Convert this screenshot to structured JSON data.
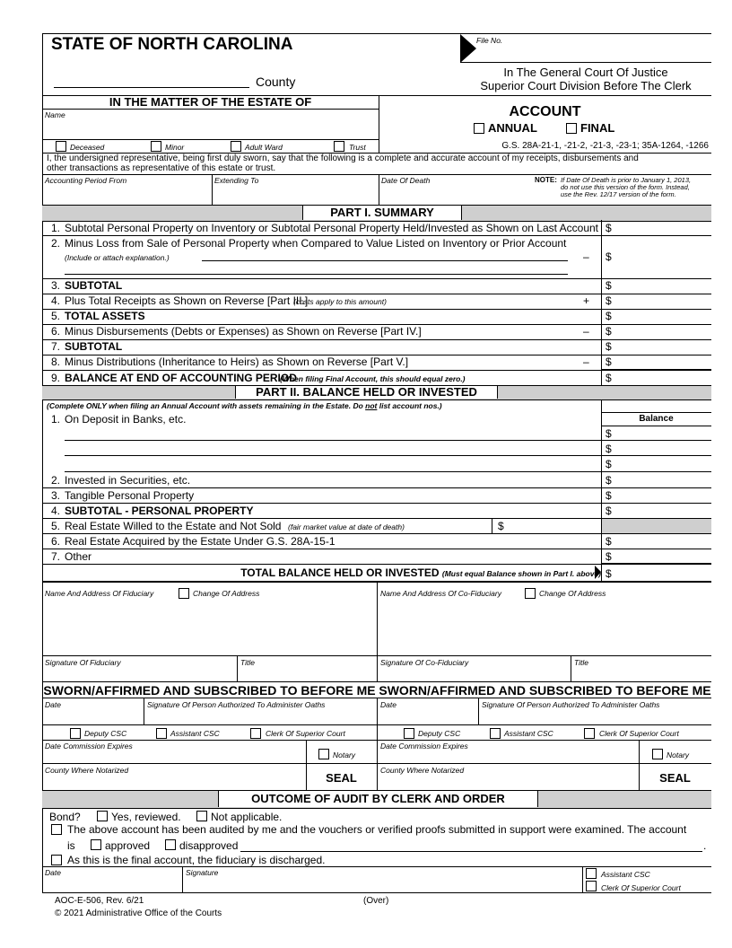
{
  "header": {
    "state": "STATE OF NORTH CAROLINA",
    "file_no_label": "File No.",
    "county_label": "County",
    "court_line1": "In The General Court Of Justice",
    "court_line2": "Superior Court Division Before The Clerk",
    "estate_heading": "IN THE MATTER OF THE ESTATE OF",
    "name_label": "Name",
    "estate_types": [
      "Deceased",
      "Minor",
      "Adult Ward",
      "Trust"
    ],
    "form_title": "ACCOUNT",
    "account_types": [
      "ANNUAL",
      "FINAL"
    ],
    "statutes": "G.S. 28A-21-1, -21-2, -21-3, -23-1; 35A-1264, -1266",
    "oath_line1": "I, the undersigned representative, being first duly sworn, say that the following is a complete and accurate account of my receipts, disbursements and",
    "oath_line2": "other transactions as representative of this estate or trust.",
    "period_from_label": "Accounting Period From",
    "extending_to_label": "Extending To",
    "date_of_death_label": "Date Of Death",
    "note_label": "NOTE:",
    "note_line1": "If Date Of Death is prior to January 1, 2013,",
    "note_line2": "do not use this version of the form. Instead,",
    "note_line3": "use the Rev. 12/17 version of the form."
  },
  "part1": {
    "title": "PART I. SUMMARY",
    "currency": "$",
    "rows": [
      {
        "num": "1.",
        "text": "Subtotal Personal Property on Inventory or Subtotal Personal Property Held/Invested as Shown on Last Account",
        "sign": ""
      },
      {
        "num": "2.",
        "text": "Minus Loss from Sale of Personal Property when Compared to Value Listed on Inventory or Prior Account",
        "note": "(Include or attach explanation.)",
        "sign": "–"
      },
      {
        "num": "3.",
        "text": "SUBTOTAL",
        "sign": ""
      },
      {
        "num": "4.",
        "text": "Plus Total Receipts as Shown on Reverse [Part III.]",
        "note": "(costs apply to this amount)",
        "sign": "+"
      },
      {
        "num": "5.",
        "text": "TOTAL ASSETS",
        "sign": ""
      },
      {
        "num": "6.",
        "text": "Minus Disbursements (Debts or Expenses) as Shown on Reverse [Part IV.]",
        "sign": "–"
      },
      {
        "num": "7.",
        "text": "SUBTOTAL",
        "sign": ""
      },
      {
        "num": "8.",
        "text": "Minus Distributions (Inheritance to Heirs) as Shown on Reverse [Part V.]",
        "sign": "–"
      },
      {
        "num": "9.",
        "text": "BALANCE AT END OF ACCOUNTING PERIOD",
        "note": "(When filing Final Account, this should equal zero.)",
        "sign": ""
      }
    ]
  },
  "part2": {
    "title": "PART II. BALANCE HELD OR INVESTED",
    "instructions_a": "(Complete ONLY when filing an Annual Account with assets remaining in the Estate. Do ",
    "instructions_not": "not",
    "instructions_b": " list account nos.)",
    "balance_header": "Balance",
    "currency": "$",
    "rows": [
      {
        "num": "1.",
        "text": "On Deposit in Banks, etc."
      },
      {
        "num": "2.",
        "text": "Invested in Securities, etc."
      },
      {
        "num": "3.",
        "text": "Tangible Personal Property"
      },
      {
        "num": "4.",
        "text": "SUBTOTAL - PERSONAL PROPERTY"
      },
      {
        "num": "5.",
        "text": "Real Estate Willed to the Estate and Not Sold",
        "note": "(fair market value at date of death)"
      },
      {
        "num": "6.",
        "text": "Real Estate Acquired by the Estate Under G.S. 28A-15-1"
      },
      {
        "num": "7.",
        "text": "Other"
      }
    ],
    "total_label": "TOTAL BALANCE HELD OR INVESTED",
    "total_note": "(Must equal Balance shown in Part I. above)"
  },
  "fiduciary": {
    "name_address_label": "Name And Address Of Fiduciary",
    "co_name_address_label": "Name And Address Of Co-Fiduciary",
    "change_address_label": "Change Of Address",
    "signature_label": "Signature Of Fiduciary",
    "co_signature_label": "Signature Of Co-Fiduciary",
    "title_label": "Title"
  },
  "sworn": {
    "heading": "SWORN/AFFIRMED AND SUBSCRIBED TO BEFORE ME",
    "date_label": "Date",
    "signature_label": "Signature Of Person Authorized To Administer Oaths",
    "options": [
      "Deputy CSC",
      "Assistant CSC",
      "Clerk Of Superior Court"
    ],
    "commission_label": "Date Commission Expires",
    "notary_label": "Notary",
    "county_label": "County Where Notarized",
    "seal": "SEAL"
  },
  "audit": {
    "title": "OUTCOME OF AUDIT BY CLERK AND ORDER",
    "bond_label": "Bond?",
    "bond_yes": "Yes, reviewed.",
    "bond_na": "Not applicable.",
    "audited_text": "The above account has been audited by me and the vouchers or verified proofs submitted in support were examined. The account",
    "is_label": "is",
    "approved": "approved",
    "disapproved": "disapproved",
    "period": ".",
    "final_text": "As this is the final account, the fiduciary is discharged.",
    "date_label": "Date",
    "signature_label": "Signature",
    "signer_options": [
      "Assistant CSC",
      "Clerk Of Superior Court"
    ]
  },
  "footer": {
    "form_number": "AOC-E-506, Rev. 6/21",
    "over": "(Over)",
    "copyright": "© 2021 Administrative Office of the Courts"
  }
}
